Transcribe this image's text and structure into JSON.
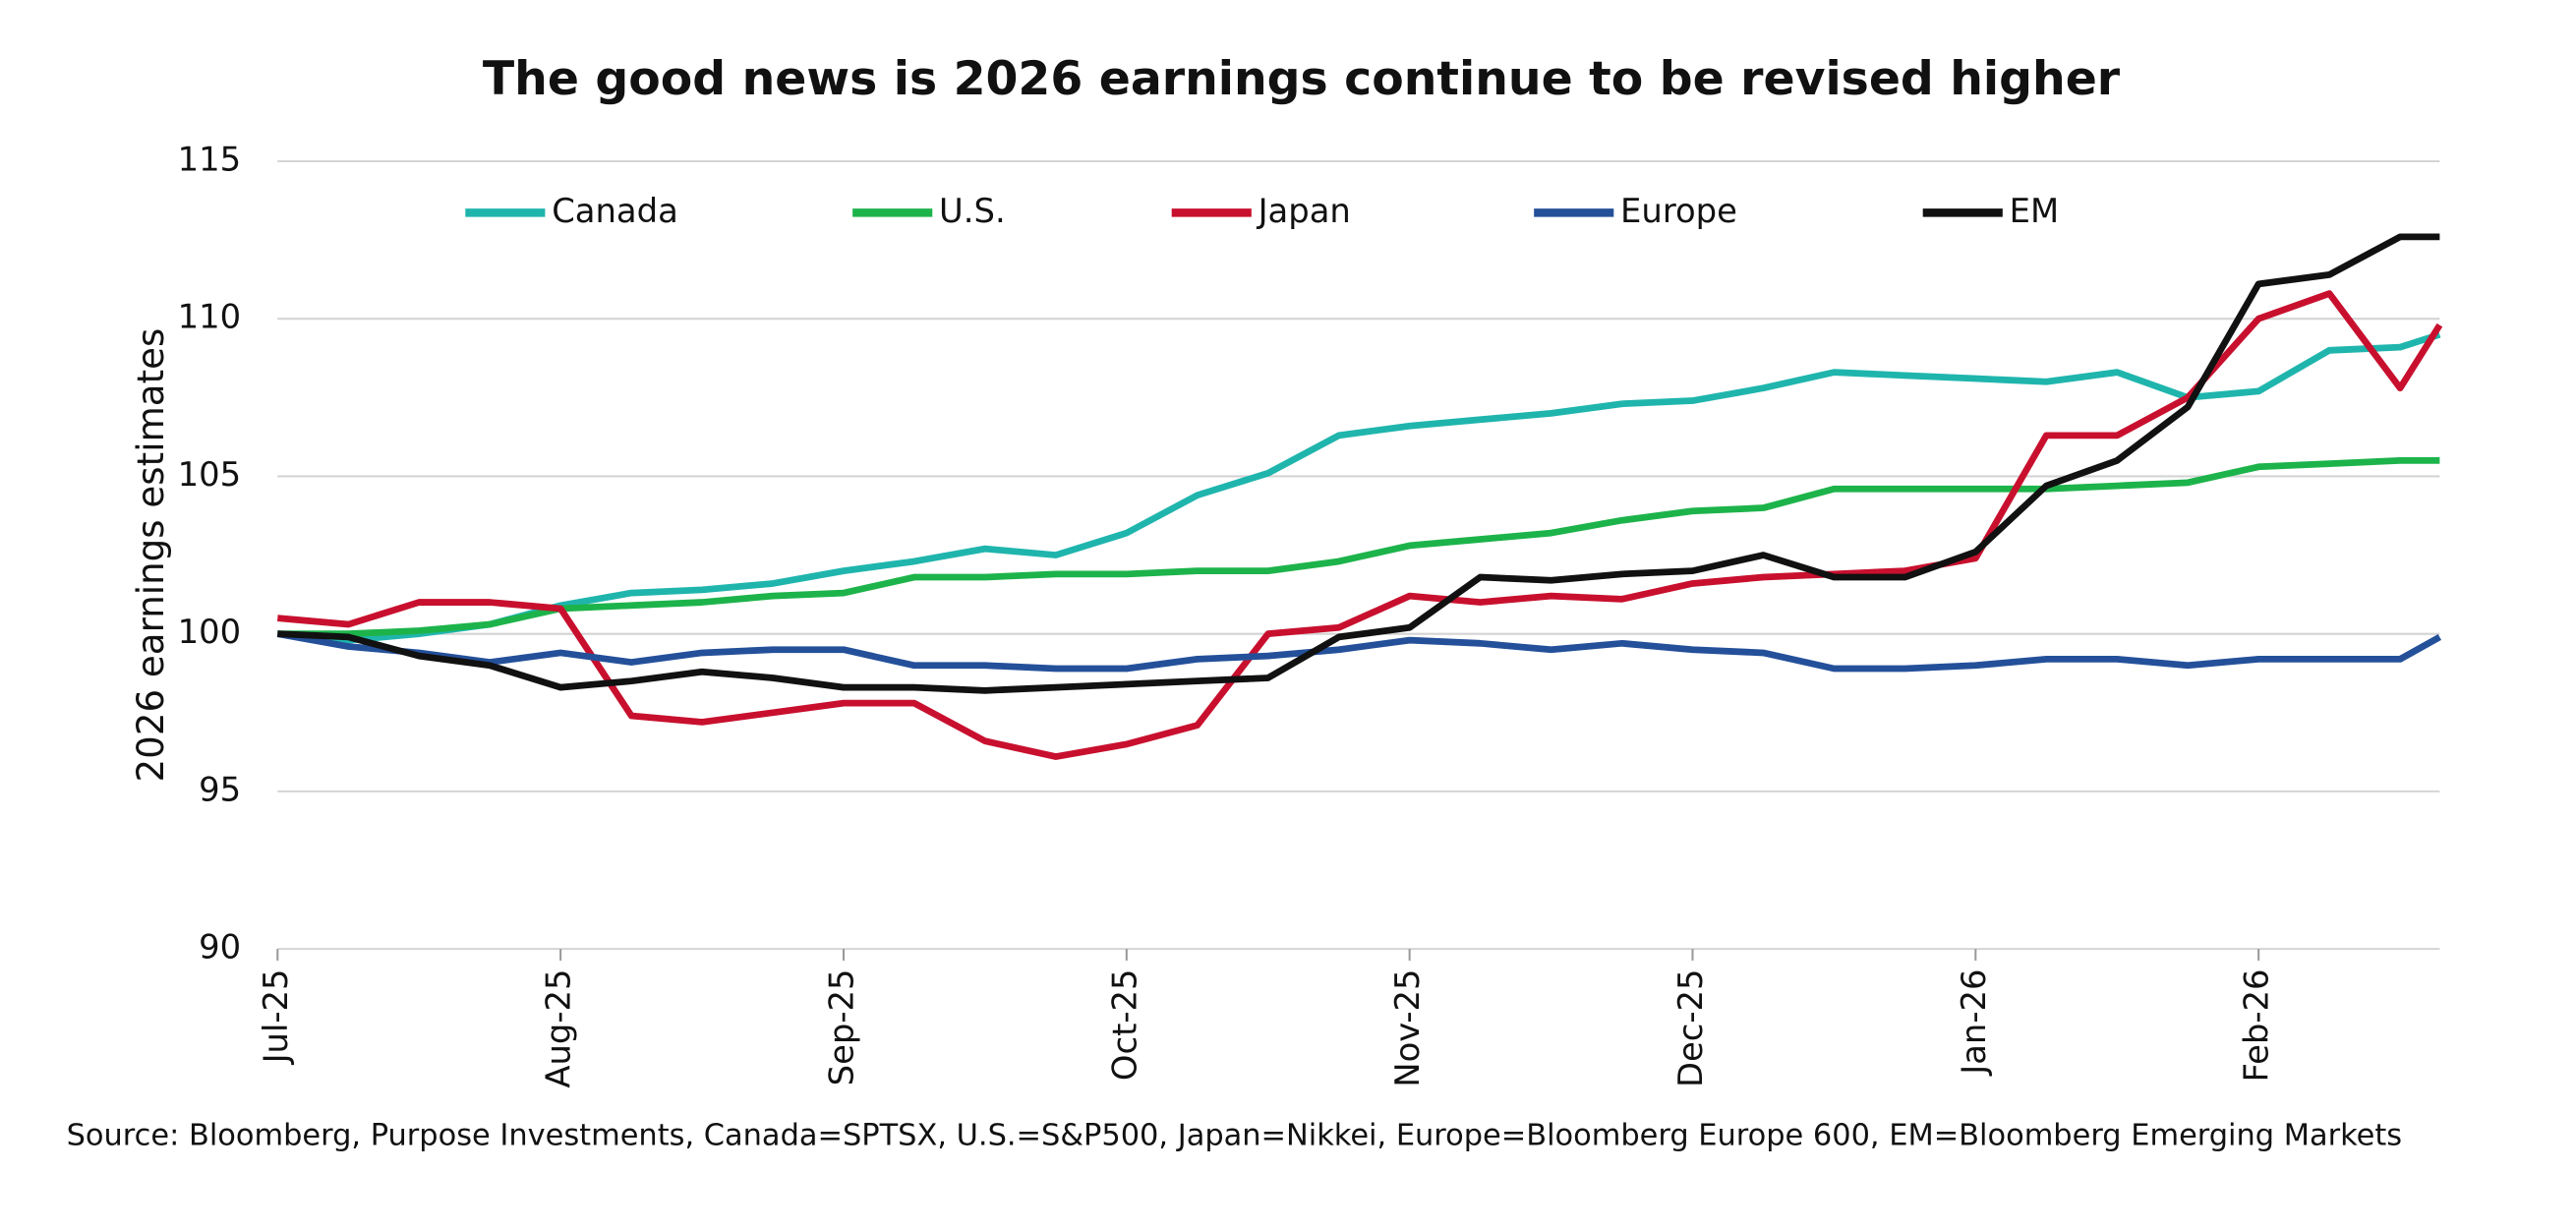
{
  "chart_data": {
    "type": "line",
    "title": "The good news is 2026 earnings continue to be revised higher",
    "y_label": "2026 earnings estimates",
    "source": "Source: Bloomberg, Purpose Investments, Canada=SPTSX, U.S.=S&P500, Japan=Nikkei, Europe=Bloomberg Europe 600, EM=Bloomberg Emerging Markets",
    "x": [
      0,
      0.25,
      0.5,
      0.75,
      1,
      1.25,
      1.5,
      1.75,
      2,
      2.25,
      2.5,
      2.75,
      3,
      3.25,
      3.5,
      3.75,
      4,
      4.25,
      4.5,
      4.75,
      5,
      5.25,
      5.5,
      5.75,
      6,
      6.25,
      6.5,
      6.75,
      7,
      7.25,
      7.5,
      7.64
    ],
    "xlim": [
      0,
      7.64
    ],
    "xticks": [
      {
        "value": 0,
        "label": "Jul-25"
      },
      {
        "value": 1,
        "label": "Aug-25"
      },
      {
        "value": 2,
        "label": "Sep-25"
      },
      {
        "value": 3,
        "label": "Oct-25"
      },
      {
        "value": 4,
        "label": "Nov-25"
      },
      {
        "value": 5,
        "label": "Dec-25"
      },
      {
        "value": 6,
        "label": "Jan-26"
      },
      {
        "value": 7,
        "label": "Feb-26"
      }
    ],
    "ylim": [
      90,
      115
    ],
    "yticks": [
      90,
      95,
      100,
      105,
      110,
      115
    ],
    "grid": true,
    "legend": "top",
    "series": [
      {
        "name": "Canada",
        "color": "#1fb5ad",
        "values": [
          100,
          99.8,
          100.0,
          100.3,
          100.9,
          101.3,
          101.4,
          101.6,
          102.0,
          102.3,
          102.7,
          102.5,
          103.2,
          104.4,
          105.1,
          106.3,
          106.6,
          106.8,
          107.0,
          107.3,
          107.4,
          107.8,
          108.3,
          108.2,
          108.1,
          108.0,
          108.3,
          107.5,
          107.7,
          109.0,
          109.1,
          109.5
        ]
      },
      {
        "name": "U.S.",
        "color": "#1db34b",
        "values": [
          100,
          100,
          100.1,
          100.3,
          100.8,
          100.9,
          101.0,
          101.2,
          101.3,
          101.8,
          101.8,
          101.9,
          101.9,
          102.0,
          102.0,
          102.3,
          102.8,
          103.0,
          103.2,
          103.6,
          103.9,
          104.0,
          104.6,
          104.6,
          104.6,
          104.6,
          104.7,
          104.8,
          105.3,
          105.4,
          105.5,
          105.5
        ]
      },
      {
        "name": "Japan",
        "color": "#c8102e",
        "values": [
          100.5,
          100.3,
          101.0,
          101.0,
          100.8,
          97.4,
          97.2,
          97.5,
          97.8,
          97.8,
          96.6,
          96.1,
          96.5,
          97.1,
          100.0,
          100.2,
          101.2,
          101.0,
          101.2,
          101.1,
          101.6,
          101.8,
          101.9,
          102.0,
          102.4,
          106.3,
          106.3,
          107.5,
          110.0,
          110.8,
          107.8,
          109.8
        ]
      },
      {
        "name": "Europe",
        "color": "#24509a",
        "values": [
          100,
          99.6,
          99.4,
          99.1,
          99.4,
          99.1,
          99.4,
          99.5,
          99.5,
          99.0,
          99.0,
          98.9,
          98.9,
          99.2,
          99.3,
          99.5,
          99.8,
          99.7,
          99.5,
          99.7,
          99.5,
          99.4,
          98.9,
          98.9,
          99.0,
          99.2,
          99.2,
          99.0,
          99.2,
          99.2,
          99.2,
          99.9
        ]
      },
      {
        "name": "EM",
        "color": "#111111",
        "values": [
          100,
          99.9,
          99.3,
          99.0,
          98.3,
          98.5,
          98.8,
          98.6,
          98.3,
          98.3,
          98.2,
          98.3,
          98.4,
          98.5,
          98.6,
          99.9,
          100.2,
          101.8,
          101.7,
          101.9,
          102.0,
          102.5,
          101.8,
          101.8,
          102.6,
          104.7,
          105.5,
          107.2,
          111.1,
          111.4,
          112.6,
          112.6
        ]
      }
    ]
  }
}
